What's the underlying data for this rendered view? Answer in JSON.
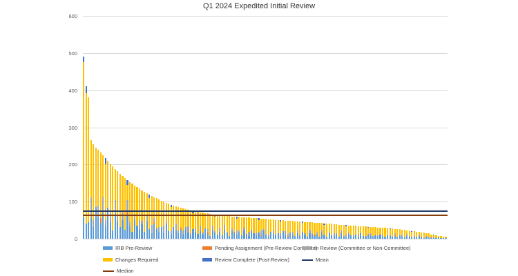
{
  "chart_data": {
    "type": "bar",
    "stacked": true,
    "title": "Q1 2024 Expedited Initial Review",
    "xlabel": "",
    "ylabel": "",
    "ylim": [
      0,
      600
    ],
    "yticks": [
      0,
      100,
      200,
      300,
      400,
      500,
      600
    ],
    "grid": "horizontal",
    "x_tick_labels_visible": false,
    "gridline_color": "#d9d9d9",
    "series": [
      {
        "name": "IRB Pre-Review",
        "color": "#5B9BD5"
      },
      {
        "name": "Pending Assignment (Pre-Review Complete)",
        "color": "#ED7D31"
      },
      {
        "name": "In Review (Committee or Non-Committee)",
        "color": "#A5A5A5"
      },
      {
        "name": "Changes Required",
        "color": "#FFC000"
      },
      {
        "name": "Review Complete (Post-Review)",
        "color": "#4472C4"
      }
    ],
    "mean": 75,
    "median": 63,
    "mean_color": "#1F3864",
    "median_color": "#843C0B",
    "bars": [
      [
        60,
        0,
        0,
        415,
        15
      ],
      [
        40,
        0,
        0,
        352,
        18
      ],
      [
        45,
        0,
        0,
        335,
        0
      ],
      [
        58,
        0,
        53,
        154,
        0
      ],
      [
        31,
        0,
        20,
        204,
        0
      ],
      [
        86,
        0,
        0,
        159,
        0
      ],
      [
        60,
        0,
        29,
        151,
        0
      ],
      [
        42,
        14,
        0,
        176,
        0
      ],
      [
        68,
        0,
        45,
        112,
        0
      ],
      [
        33,
        0,
        17,
        151,
        17
      ],
      [
        84,
        0,
        0,
        126,
        0
      ],
      [
        44,
        0,
        24,
        132,
        0
      ],
      [
        23,
        0,
        0,
        172,
        0
      ],
      [
        66,
        0,
        38,
        84,
        0
      ],
      [
        46,
        0,
        15,
        121,
        0
      ],
      [
        32,
        0,
        0,
        143,
        0
      ],
      [
        51,
        0,
        20,
        99,
        0
      ],
      [
        25,
        0,
        0,
        139,
        0
      ],
      [
        63,
        9,
        32,
        41,
        13
      ],
      [
        33,
        0,
        12,
        107,
        0
      ],
      [
        18,
        0,
        0,
        130,
        0
      ],
      [
        50,
        0,
        17,
        76,
        0
      ],
      [
        35,
        0,
        0,
        104,
        0
      ],
      [
        24,
        0,
        27,
        84,
        0
      ],
      [
        39,
        0,
        10,
        82,
        0
      ],
      [
        19,
        0,
        0,
        108,
        0
      ],
      [
        49,
        0,
        15,
        59,
        0
      ],
      [
        26,
        0,
        0,
        83,
        10
      ],
      [
        14,
        0,
        23,
        79,
        0
      ],
      [
        39,
        7,
        9,
        57,
        0
      ],
      [
        27,
        0,
        0,
        82,
        0
      ],
      [
        19,
        0,
        13,
        74,
        0
      ],
      [
        31,
        0,
        0,
        72,
        0
      ],
      [
        15,
        0,
        20,
        65,
        0
      ],
      [
        39,
        0,
        8,
        50,
        0
      ],
      [
        21,
        0,
        0,
        74,
        0
      ],
      [
        11,
        0,
        11,
        63,
        7
      ],
      [
        32,
        0,
        0,
        58,
        0
      ],
      [
        22,
        0,
        18,
        48,
        0
      ],
      [
        15,
        0,
        7,
        64,
        0
      ],
      [
        25,
        5,
        0,
        54,
        0
      ],
      [
        12,
        0,
        10,
        60,
        0
      ],
      [
        32,
        0,
        0,
        48,
        0
      ],
      [
        17,
        0,
        16,
        45,
        0
      ],
      [
        9,
        0,
        6,
        62,
        0
      ],
      [
        26,
        0,
        0,
        43,
        6
      ],
      [
        19,
        0,
        9,
        46,
        0
      ],
      [
        13,
        0,
        0,
        59,
        0
      ],
      [
        21,
        0,
        14,
        36,
        0
      ],
      [
        11,
        0,
        6,
        53,
        0
      ],
      [
        28,
        0,
        0,
        41,
        0
      ],
      [
        15,
        4,
        8,
        41,
        0
      ],
      [
        8,
        0,
        0,
        59,
        0
      ],
      [
        23,
        0,
        13,
        30,
        0
      ],
      [
        16,
        0,
        5,
        39,
        5
      ],
      [
        12,
        0,
        0,
        53,
        0
      ],
      [
        19,
        0,
        8,
        37,
        0
      ],
      [
        9,
        0,
        0,
        54,
        0
      ],
      [
        25,
        0,
        12,
        25,
        0
      ],
      [
        14,
        0,
        5,
        43,
        0
      ],
      [
        7,
        0,
        0,
        54,
        0
      ],
      [
        21,
        0,
        7,
        32,
        0
      ],
      [
        15,
        4,
        0,
        41,
        0
      ],
      [
        11,
        0,
        12,
        31,
        5
      ],
      [
        18,
        0,
        5,
        36,
        0
      ],
      [
        9,
        0,
        0,
        49,
        0
      ],
      [
        23,
        0,
        7,
        28,
        0
      ],
      [
        13,
        0,
        0,
        44,
        0
      ],
      [
        7,
        0,
        11,
        39,
        0
      ],
      [
        20,
        0,
        4,
        32,
        0
      ],
      [
        14,
        0,
        0,
        42,
        0
      ],
      [
        10,
        0,
        7,
        38,
        0
      ],
      [
        17,
        0,
        0,
        34,
        4
      ],
      [
        8,
        3,
        11,
        32,
        0
      ],
      [
        22,
        0,
        4,
        28,
        0
      ],
      [
        12,
        0,
        0,
        41,
        0
      ],
      [
        6,
        0,
        6,
        41,
        0
      ],
      [
        18,
        0,
        0,
        34,
        0
      ],
      [
        13,
        0,
        10,
        29,
        0
      ],
      [
        9,
        0,
        4,
        38,
        0
      ],
      [
        15,
        0,
        0,
        36,
        0
      ],
      [
        8,
        0,
        6,
        32,
        4
      ],
      [
        20,
        0,
        0,
        30,
        0
      ],
      [
        11,
        0,
        10,
        28,
        0
      ],
      [
        6,
        3,
        4,
        36,
        0
      ],
      [
        17,
        0,
        0,
        31,
        0
      ],
      [
        12,
        0,
        6,
        30,
        0
      ],
      [
        8,
        0,
        0,
        39,
        0
      ],
      [
        14,
        0,
        9,
        24,
        0
      ],
      [
        7,
        0,
        4,
        35,
        0
      ],
      [
        18,
        0,
        0,
        24,
        4
      ],
      [
        10,
        0,
        5,
        30,
        0
      ],
      [
        5,
        0,
        0,
        40,
        0
      ],
      [
        15,
        0,
        9,
        20,
        0
      ],
      [
        11,
        0,
        4,
        29,
        0
      ],
      [
        8,
        3,
        0,
        32,
        0
      ],
      [
        13,
        0,
        5,
        25,
        0
      ],
      [
        6,
        0,
        0,
        36,
        0
      ],
      [
        17,
        0,
        8,
        17,
        0
      ],
      [
        9,
        0,
        3,
        26,
        3
      ],
      [
        5,
        0,
        0,
        36,
        0
      ],
      [
        14,
        0,
        5,
        21,
        0
      ],
      [
        10,
        0,
        0,
        30,
        0
      ],
      [
        7,
        0,
        8,
        24,
        0
      ],
      [
        12,
        0,
        3,
        24,
        0
      ],
      [
        6,
        0,
        0,
        32,
        0
      ],
      [
        15,
        2,
        5,
        16,
        0
      ],
      [
        8,
        0,
        0,
        29,
        0
      ],
      [
        4,
        0,
        7,
        23,
        3
      ],
      [
        13,
        0,
        3,
        20,
        0
      ],
      [
        9,
        0,
        0,
        27,
        0
      ],
      [
        6,
        0,
        4,
        25,
        0
      ],
      [
        11,
        0,
        0,
        24,
        0
      ],
      [
        5,
        0,
        7,
        22,
        0
      ],
      [
        14,
        0,
        3,
        17,
        0
      ],
      [
        7,
        0,
        0,
        26,
        0
      ],
      [
        4,
        0,
        4,
        25,
        0
      ],
      [
        11,
        2,
        0,
        16,
        3
      ],
      [
        8,
        0,
        6,
        18,
        0
      ],
      [
        6,
        0,
        2,
        23,
        0
      ],
      [
        9,
        0,
        0,
        22,
        0
      ],
      [
        5,
        0,
        4,
        21,
        0
      ],
      [
        12,
        0,
        0,
        18,
        0
      ],
      [
        6,
        0,
        6,
        17,
        0
      ],
      [
        3,
        0,
        2,
        24,
        0
      ],
      [
        10,
        0,
        0,
        18,
        0
      ],
      [
        7,
        0,
        3,
        16,
        2
      ],
      [
        5,
        0,
        0,
        22,
        0
      ],
      [
        8,
        2,
        5,
        12,
        0
      ],
      [
        4,
        0,
        2,
        20,
        0
      ],
      [
        10,
        0,
        0,
        16,
        0
      ],
      [
        6,
        0,
        3,
        16,
        0
      ],
      [
        3,
        0,
        0,
        21,
        0
      ],
      [
        8,
        0,
        5,
        10,
        0
      ],
      [
        6,
        0,
        2,
        14,
        0
      ],
      [
        4,
        0,
        0,
        15,
        2
      ],
      [
        6,
        0,
        2,
        12,
        0
      ],
      [
        3,
        0,
        0,
        16,
        0
      ],
      [
        7,
        0,
        4,
        7,
        0
      ],
      [
        4,
        1,
        1,
        11,
        0
      ],
      [
        2,
        0,
        0,
        14,
        0
      ],
      [
        5,
        0,
        2,
        8,
        0
      ],
      [
        4,
        0,
        0,
        10,
        0
      ],
      [
        2,
        0,
        2,
        8,
        0
      ],
      [
        3,
        0,
        1,
        6,
        1
      ],
      [
        2,
        0,
        0,
        8,
        0
      ],
      [
        3,
        0,
        1,
        4,
        0
      ],
      [
        2,
        0,
        0,
        5,
        0
      ],
      [
        1,
        0,
        1,
        4,
        0
      ],
      [
        2,
        0,
        0,
        3,
        0
      ]
    ],
    "legend_position": "bottom"
  },
  "legend": {
    "rows": [
      [
        {
          "swatch": "bar",
          "color": "#5B9BD5",
          "label": "IRB Pre-Review"
        },
        {
          "swatch": "bar",
          "color": "#ED7D31",
          "label": "Pending Assignment (Pre-Review Complete)"
        },
        {
          "swatch": "bar",
          "color": "#A5A5A5",
          "label": "In Review (Committee or Non-Committee)"
        }
      ],
      [
        {
          "swatch": "bar",
          "color": "#FFC000",
          "label": "Changes Required"
        },
        {
          "swatch": "bar",
          "color": "#4472C4",
          "label": "Review Complete (Post-Review)"
        },
        {
          "swatch": "line",
          "color": "#1F3864",
          "label": "Mean"
        }
      ],
      [
        {
          "swatch": "line",
          "color": "#843C0B",
          "label": "Median"
        }
      ]
    ]
  }
}
